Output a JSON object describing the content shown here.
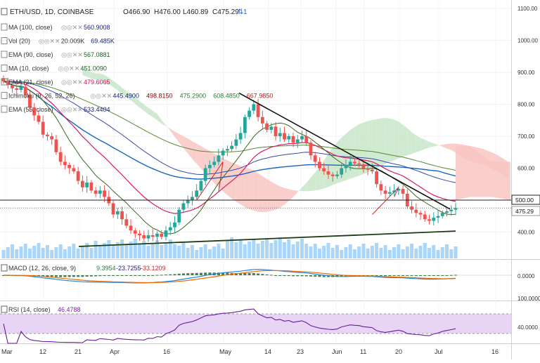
{
  "header": {
    "symbol": "ETH/USD, 1D, COINBASE",
    "open": "O466.90",
    "high": "H476.00",
    "low": "L460.89",
    "close": "C475.29",
    "ident": "1"
  },
  "indicators": [
    {
      "label": "MA (100, close)",
      "values": [
        "560.9008"
      ],
      "colors": [
        "#1a237e"
      ]
    },
    {
      "label": "Vol (20)",
      "values": [
        "20.009K",
        "69.485K"
      ],
      "colors": [
        "#333333",
        "#1a237e"
      ]
    },
    {
      "label": "EMA (90, close)",
      "values": [
        "567.0881"
      ],
      "colors": [
        "#1b5e20"
      ]
    },
    {
      "label": "MA (10, close)",
      "values": [
        "451.0090"
      ],
      "colors": [
        "#1b5e20"
      ]
    },
    {
      "label": "EMA (21, close)",
      "values": [
        "479.6065"
      ],
      "colors": [
        "#c2185b"
      ]
    },
    {
      "label": "Ichimoku (9, 26, 52, 26)",
      "values": [
        "445.4900",
        "498.8150",
        "475.2900",
        "608.4850",
        "667.9850"
      ],
      "colors": [
        "#1a237e",
        "#8e0000",
        "#2e7d32",
        "#2e7d32",
        "#b71c1c"
      ]
    },
    {
      "label": "EMA (55, close)",
      "values": [
        "533.4404"
      ],
      "colors": [
        "#1a237e"
      ]
    }
  ],
  "price_axis": {
    "ticks": [
      "1100.00",
      "1000.00",
      "900.00",
      "800.00",
      "700.00",
      "600.00",
      "500.00",
      "400.00"
    ],
    "marker_500": "500.00",
    "marker_last": "475.29"
  },
  "macd": {
    "label": "MACD (12, 26, close, 9)",
    "values": [
      "9.3954",
      "-23.7255",
      "-33.1209"
    ],
    "colors": [
      "#2e7d32",
      "#1a237e",
      "#c62828"
    ],
    "axis": [
      "0.0000",
      "100.0000"
    ]
  },
  "rsi": {
    "label": "RSI (14, close)",
    "value": "46.4788",
    "axis": [
      "40.0000"
    ]
  },
  "time_axis": [
    "Mar",
    "12",
    "21",
    "Apr",
    "16",
    "May",
    "14",
    "23",
    "Jun",
    "11",
    "20",
    "Jul",
    "16"
  ],
  "colors": {
    "up": "#26a69a",
    "down": "#ef5350",
    "cloud_bear": "#f8c6c2",
    "cloud_bull": "#c8e6c9",
    "ma100": "#1565c0",
    "ema21": "#d81b60",
    "ema55": "#3949ab",
    "ema90": "#558b2f",
    "ma10": "#33691e",
    "volume": "#64b5f6",
    "rsi_band": "#e8d5f5"
  },
  "chart_data": {
    "type": "candlestick",
    "title": "ETH/USD, 1D, COINBASE",
    "ylim": [
      330,
      1100
    ],
    "x_ticks": [
      "Mar",
      "12",
      "21",
      "Apr",
      "16",
      "May",
      "14",
      "23",
      "Jun",
      "11",
      "20",
      "Jul",
      "16"
    ],
    "x_date_range": [
      "Mar 1",
      "Jul 4"
    ],
    "close_series": [
      872,
      860,
      850,
      845,
      855,
      830,
      790,
      765,
      745,
      705,
      700,
      690,
      650,
      620,
      610,
      600,
      590,
      560,
      540,
      555,
      530,
      520,
      530,
      510,
      490,
      455,
      465,
      440,
      420,
      405,
      395,
      390,
      380,
      390,
      385,
      395,
      385,
      405,
      415,
      430,
      470,
      490,
      500,
      510,
      530,
      560,
      600,
      610,
      620,
      640,
      655,
      660,
      670,
      690,
      710,
      760,
      780,
      800,
      760,
      740,
      720,
      730,
      700,
      710,
      690,
      700,
      680,
      690,
      700,
      680,
      640,
      620,
      600,
      590,
      580,
      575,
      580,
      600,
      610,
      620,
      615,
      612,
      600,
      595,
      590,
      550,
      530,
      520,
      525,
      530,
      535,
      520,
      480,
      470,
      460,
      455,
      440,
      435,
      445,
      450,
      460,
      465,
      470,
      475
    ],
    "annotations": {
      "descending_trendline": {
        "from": [
          "May 6",
          835
        ],
        "to": [
          "Jul 2",
          472
        ]
      },
      "ascending_support": {
        "from": [
          "Mar 20",
          355
        ],
        "to": [
          "Jul 4",
          403
        ]
      },
      "horizontal_level": 500
    }
  }
}
